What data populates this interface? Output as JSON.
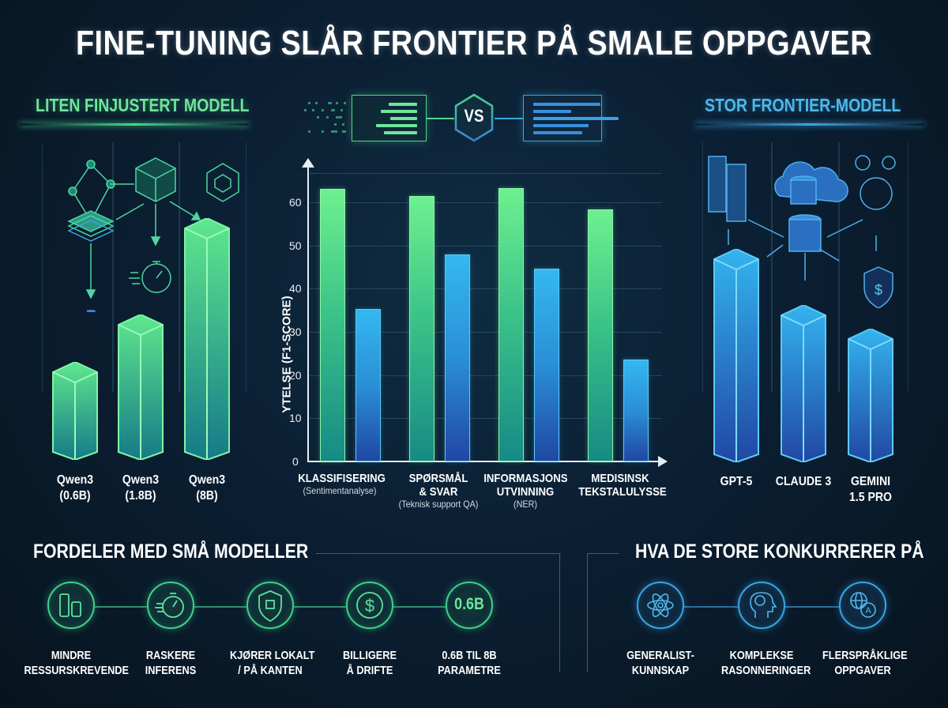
{
  "title": "FINE-TUNING SLÅR FRONTIER PÅ SMALE OPPGAVER",
  "left_panel": {
    "heading": "LITEN FINJUSTERT MODELL",
    "accent_color": "#6ee59a",
    "models": [
      {
        "name": "Qwen3",
        "size": "(0.6B)"
      },
      {
        "name": "Qwen3",
        "size": "(1.8B)"
      },
      {
        "name": "Qwen3",
        "size": "(8B)"
      }
    ],
    "icons": [
      "network-graph-icon",
      "neural-cube-icon",
      "hexagon-chip-icon",
      "layers-icon",
      "stopwatch-icon",
      "qwen-logo-icon"
    ]
  },
  "right_panel": {
    "heading": "STOR FRONTIER-MODELL",
    "accent_color": "#4fb8ea",
    "models": [
      {
        "name": "GPT-5",
        "size": ""
      },
      {
        "name": "CLAUDE 3",
        "size": ""
      },
      {
        "name": "GEMINI",
        "size": "1.5 PRO"
      }
    ],
    "icons": [
      "server-rack-icon",
      "cloud-database-icon",
      "database-icon",
      "gears-icon",
      "globe-icon",
      "shield-dollar-icon"
    ]
  },
  "versus": {
    "label": "VS"
  },
  "chart_data": {
    "type": "bar",
    "title": "",
    "xlabel": "",
    "ylabel": "YTELSE (F1-SCORE)",
    "ylim": [
      0,
      67
    ],
    "yticks": [
      0,
      10,
      20,
      30,
      40,
      50,
      60
    ],
    "grid": true,
    "legend": null,
    "categories": [
      {
        "main": "KLASSIFISERING",
        "main2": "",
        "sub": "(Sentimentanalyse)"
      },
      {
        "main": "SPØRSMÅL",
        "main2": "& SVAR",
        "sub": "(Teknisk support QA)"
      },
      {
        "main": "INFORMASJONS",
        "main2": "UTVINNING",
        "sub": "(NER)"
      },
      {
        "main": "MEDISINSK",
        "main2": "TEKSTALULYSSE",
        "sub": ""
      }
    ],
    "series": [
      {
        "name": "Liten finjustert modell",
        "color": "#6ef08f",
        "values": [
          63.2,
          61.5,
          63.4,
          58.5
        ]
      },
      {
        "name": "Stor frontier-modell",
        "color": "#34b8f0",
        "values": [
          35.3,
          47.9,
          44.7,
          23.7
        ]
      }
    ]
  },
  "advantages": {
    "title": "FORDELER MED SMÅ MODELLER",
    "items": [
      {
        "icon": "resource-bars-icon",
        "line1": "MINDRE",
        "line2": "RESSURSKREVENDE"
      },
      {
        "icon": "stopwatch-icon",
        "line1": "RASKERE",
        "line2": "INFERENS"
      },
      {
        "icon": "shield-chip-icon",
        "line1": "KJØRER LOKALT",
        "line2": "/ PÅ KANTEN"
      },
      {
        "icon": "dollar-icon",
        "line1": "BILLIGERE",
        "line2": "Å DRIFTE"
      },
      {
        "icon": "param-count-icon",
        "value": "0.6B",
        "line1": "0.6B TIL 8B",
        "line2": "PARAMETRE"
      }
    ]
  },
  "competitors": {
    "title": "HVA DE STORE KONKURRERER PÅ",
    "items": [
      {
        "icon": "atom-icon",
        "line1": "GENERALIST-",
        "line2": "KUNNSKAP"
      },
      {
        "icon": "brain-head-icon",
        "line1": "KOMPLEKSE",
        "line2": "RASONNERINGER"
      },
      {
        "icon": "globe-language-icon",
        "line1": "FLERSPRÅKLIGE",
        "line2": "OPPGAVER"
      }
    ]
  }
}
